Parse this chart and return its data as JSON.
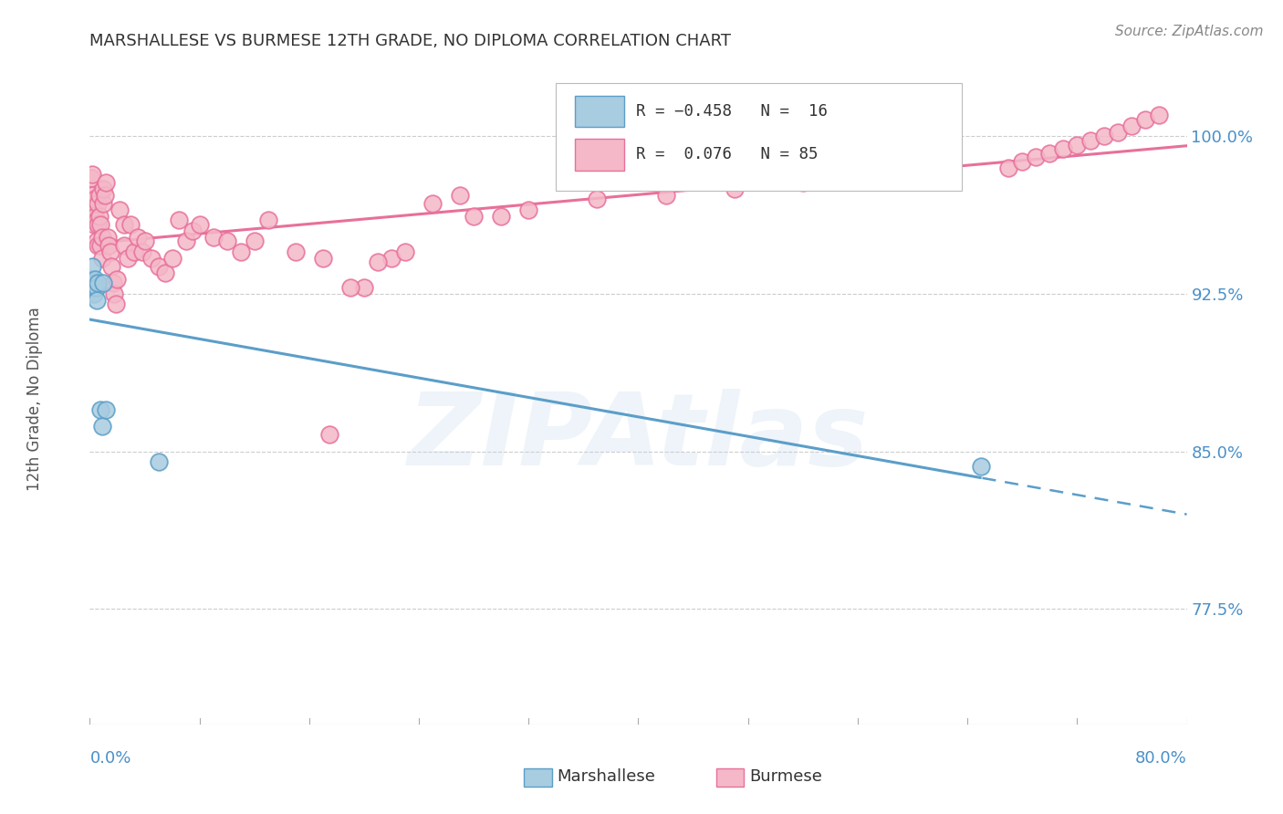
{
  "title": "MARSHALLESE VS BURMESE 12TH GRADE, NO DIPLOMA CORRELATION CHART",
  "source": "Source: ZipAtlas.com",
  "ylabel": "12th Grade, No Diploma",
  "xmin": 0.0,
  "xmax": 0.8,
  "ymin": 0.72,
  "ymax": 1.03,
  "yticks": [
    0.775,
    0.85,
    0.925,
    1.0
  ],
  "ytick_labels": [
    "77.5%",
    "85.0%",
    "92.5%",
    "100.0%"
  ],
  "marshallese_color": "#a8cce0",
  "burmese_color": "#f4b8c8",
  "marshallese_edge": "#5b9ec9",
  "burmese_edge": "#e8709a",
  "regression_blue": "#5b9ec9",
  "regression_pink": "#e8709a",
  "grid_color": "#cccccc",
  "title_color": "#333333",
  "axis_label_color": "#4a90c8",
  "source_color": "#888888",
  "watermark_color": "#c5d8ed",
  "watermark_alpha": 0.28,
  "background_color": "#ffffff",
  "marshallese_x": [
    0.001,
    0.002,
    0.002,
    0.003,
    0.003,
    0.004,
    0.004,
    0.005,
    0.005,
    0.006,
    0.008,
    0.009,
    0.01,
    0.012,
    0.05,
    0.65
  ],
  "marshallese_y": [
    0.932,
    0.93,
    0.938,
    0.93,
    0.925,
    0.928,
    0.932,
    0.928,
    0.922,
    0.93,
    0.87,
    0.862,
    0.93,
    0.87,
    0.845,
    0.843
  ],
  "burmese_x": [
    0.001,
    0.001,
    0.002,
    0.002,
    0.002,
    0.003,
    0.003,
    0.004,
    0.004,
    0.005,
    0.005,
    0.006,
    0.006,
    0.006,
    0.007,
    0.007,
    0.008,
    0.008,
    0.009,
    0.009,
    0.01,
    0.01,
    0.011,
    0.012,
    0.013,
    0.014,
    0.015,
    0.016,
    0.017,
    0.018,
    0.019,
    0.02,
    0.022,
    0.025,
    0.025,
    0.028,
    0.03,
    0.032,
    0.035,
    0.038,
    0.04,
    0.045,
    0.05,
    0.055,
    0.06,
    0.065,
    0.07,
    0.075,
    0.08,
    0.09,
    0.1,
    0.11,
    0.12,
    0.13,
    0.15,
    0.175,
    0.2,
    0.22,
    0.25,
    0.27,
    0.3,
    0.17,
    0.19,
    0.21,
    0.23,
    0.28,
    0.32,
    0.37,
    0.42,
    0.47,
    0.52,
    0.57,
    0.62,
    0.67,
    0.68,
    0.69,
    0.7,
    0.71,
    0.72,
    0.73,
    0.74,
    0.75,
    0.76,
    0.77,
    0.78
  ],
  "burmese_y": [
    0.97,
    0.98,
    0.96,
    0.972,
    0.982,
    0.958,
    0.968,
    0.962,
    0.97,
    0.95,
    0.96,
    0.948,
    0.958,
    0.968,
    0.962,
    0.972,
    0.948,
    0.958,
    0.942,
    0.952,
    0.968,
    0.975,
    0.972,
    0.978,
    0.952,
    0.948,
    0.945,
    0.938,
    0.93,
    0.925,
    0.92,
    0.932,
    0.965,
    0.948,
    0.958,
    0.942,
    0.958,
    0.945,
    0.952,
    0.945,
    0.95,
    0.942,
    0.938,
    0.935,
    0.942,
    0.96,
    0.95,
    0.955,
    0.958,
    0.952,
    0.95,
    0.945,
    0.95,
    0.96,
    0.945,
    0.858,
    0.928,
    0.942,
    0.968,
    0.972,
    0.962,
    0.942,
    0.928,
    0.94,
    0.945,
    0.962,
    0.965,
    0.97,
    0.972,
    0.975,
    0.978,
    0.98,
    0.983,
    0.985,
    0.988,
    0.99,
    0.992,
    0.994,
    0.996,
    0.998,
    1.0,
    1.002,
    1.005,
    1.008,
    1.01
  ]
}
